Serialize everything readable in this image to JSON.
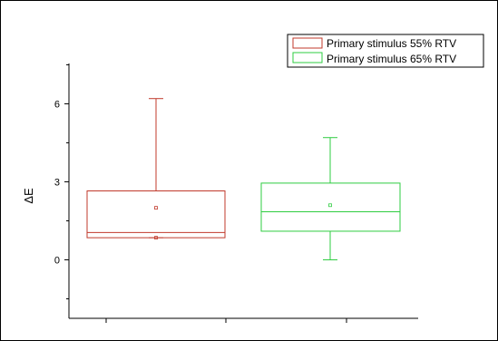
{
  "chart_data": {
    "type": "box",
    "title": "",
    "xlabel": "",
    "ylabel": "ΔE",
    "ylim": [
      -2.25,
      7.55
    ],
    "yticks": [
      0,
      3,
      6
    ],
    "ytick_labels": [
      "0",
      "3",
      "6"
    ],
    "grid": false,
    "legend_position": "top-right",
    "series": [
      {
        "name": "Primary stimulus 55% RTV",
        "color": "#c0392b",
        "whisker_low": 0.85,
        "q1": 0.85,
        "median": 1.05,
        "q3": 2.65,
        "whisker_high": 6.2,
        "mean": 2.0,
        "min_marker": 0.85
      },
      {
        "name": "Primary stimulus 65% RTV",
        "color": "#2ecc40",
        "whisker_low": 0.0,
        "q1": 1.1,
        "median": 1.85,
        "q3": 2.95,
        "whisker_high": 4.7,
        "mean": 2.1
      }
    ]
  }
}
